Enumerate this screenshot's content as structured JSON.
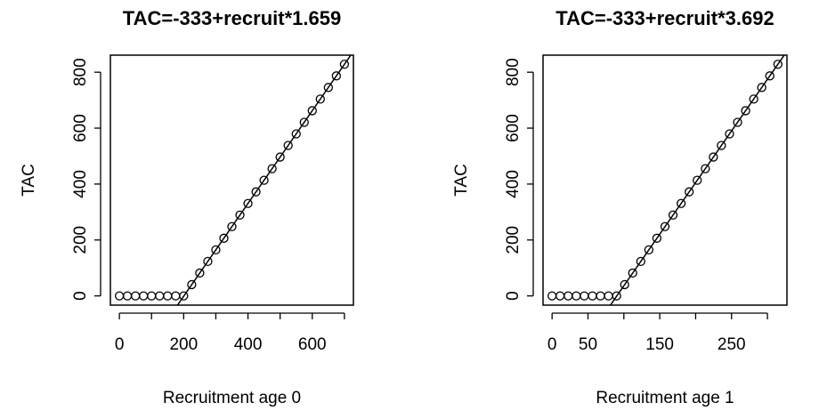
{
  "chart_data": [
    {
      "type": "scatter",
      "title": "TAC=-333+recruit*1.659",
      "x_label": "Recruitment age 0",
      "y_label": "TAC",
      "x": [
        0,
        25,
        50,
        75,
        100,
        125,
        150,
        175,
        200,
        225,
        250,
        275,
        300,
        325,
        350,
        375,
        400,
        425,
        450,
        475,
        500,
        525,
        550,
        575,
        600,
        625,
        650,
        675,
        700
      ],
      "values": [
        0,
        0,
        0,
        0,
        0,
        0,
        0,
        0,
        0,
        40.3,
        81.8,
        123.2,
        164.7,
        206.2,
        247.7,
        289.1,
        330.6,
        372.1,
        413.6,
        455.0,
        496.5,
        538.0,
        579.5,
        620.9,
        662.4,
        703.9,
        745.4,
        786.8,
        828.3
      ],
      "fit": {
        "intercept": -333,
        "slope": 1.659
      },
      "xlim": [
        -28,
        728
      ],
      "ylim": [
        -33,
        861
      ],
      "xticks": [
        0,
        200,
        400,
        600
      ],
      "xminor": [
        100,
        300,
        500,
        700
      ],
      "yticks": [
        0,
        200,
        400,
        600,
        800
      ]
    },
    {
      "type": "scatter",
      "title": "TAC=-333+recruit*3.692",
      "x_label": "Recruitment age 1",
      "y_label": "TAC",
      "x": [
        0,
        11.2,
        22.5,
        33.7,
        44.9,
        56.2,
        67.4,
        78.6,
        89.9,
        101.1,
        112.3,
        123.6,
        134.8,
        146.0,
        157.3,
        168.5,
        179.8,
        191.0,
        202.2,
        213.5,
        224.7,
        235.9,
        247.2,
        258.4,
        269.6,
        280.9,
        292.1,
        303.3,
        314.6
      ],
      "values": [
        0,
        0,
        0,
        0,
        0,
        0,
        0,
        0,
        0,
        40.3,
        81.8,
        123.2,
        164.7,
        206.2,
        247.7,
        289.1,
        330.6,
        372.1,
        413.6,
        455.0,
        496.5,
        538.0,
        579.5,
        620.9,
        662.4,
        703.9,
        745.4,
        786.8,
        828.3
      ],
      "fit": {
        "intercept": -333,
        "slope": 3.692
      },
      "xlim": [
        -12.6,
        327.2
      ],
      "ylim": [
        -33,
        861
      ],
      "xticks": [
        0,
        50,
        150,
        250
      ],
      "xminor": [
        100,
        200,
        300
      ],
      "yticks": [
        0,
        200,
        400,
        600,
        800
      ]
    }
  ]
}
